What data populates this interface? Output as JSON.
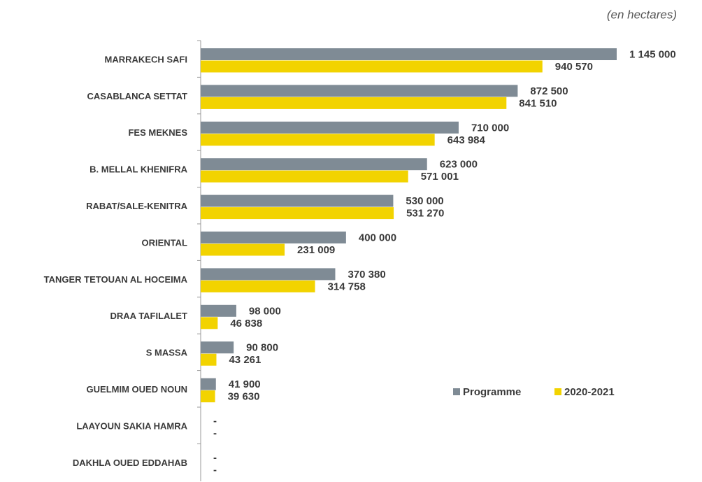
{
  "chart_data": {
    "type": "hbar_grouped",
    "subtitle": "(en hectares)",
    "categories": [
      "MARRAKECH SAFI",
      "CASABLANCA SETTAT",
      "FES MEKNES",
      "B. MELLAL KHENIFRA",
      "RABAT/SALE-KENITRA",
      "ORIENTAL",
      "TANGER TETOUAN AL HOCEIMA",
      "DRAA TAFILALET",
      "S MASSA",
      "GUELMIM OUED NOUN",
      "LAAYOUN SAKIA HAMRA",
      "DAKHLA OUED EDDAHAB"
    ],
    "series": [
      {
        "name": "Programme",
        "color": "#7f8b95",
        "values": [
          1145000,
          872500,
          710000,
          623000,
          530000,
          400000,
          370380,
          98000,
          90800,
          41900,
          null,
          null
        ],
        "value_labels": [
          "1 145 000",
          "872 500",
          "710 000",
          "623 000",
          "530 000",
          "400 000",
          "370 380",
          "98 000",
          "90 800",
          "41 900",
          "-",
          "-"
        ]
      },
      {
        "name": "2020-2021",
        "color": "#f2d300",
        "values": [
          940570,
          841510,
          643984,
          571001,
          531270,
          231009,
          314758,
          46838,
          43261,
          39630,
          null,
          null
        ],
        "value_labels": [
          "940 570",
          "841 510",
          "643 984",
          "571 001",
          "531 270",
          "231 009",
          "314 758",
          "46 838",
          "43 261",
          "39 630",
          "-",
          "-"
        ]
      }
    ],
    "legend": "lower-right"
  }
}
